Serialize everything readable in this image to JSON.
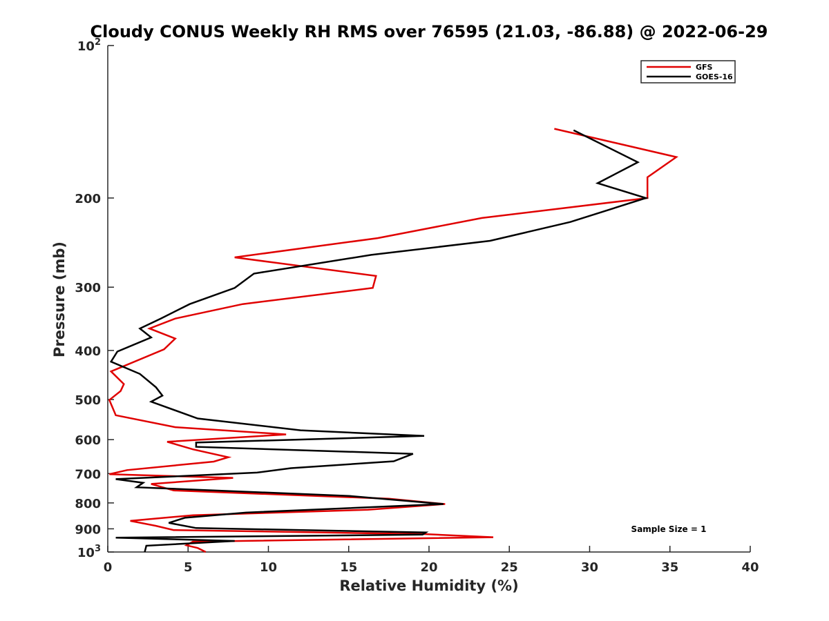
{
  "chart_data": {
    "type": "line",
    "title": "Cloudy CONUS Weekly RH RMS over 76595 (21.03, -86.88) @ 2022-06-29",
    "xlabel": "Relative Humidity (%)",
    "ylabel": "Pressure (mb)",
    "xlim": [
      0,
      40
    ],
    "ylim": [
      100,
      1000
    ],
    "yscale": "log",
    "y_reversed": true,
    "x_ticks": [
      0,
      5,
      10,
      15,
      20,
      25,
      30,
      35,
      40
    ],
    "y_ticks": [
      {
        "value": 100,
        "base": "10",
        "exp": "2"
      },
      {
        "value": 200,
        "label": "200"
      },
      {
        "value": 300,
        "label": "300"
      },
      {
        "value": 400,
        "label": "400"
      },
      {
        "value": 500,
        "label": "500"
      },
      {
        "value": 600,
        "label": "600"
      },
      {
        "value": 700,
        "label": "700"
      },
      {
        "value": 800,
        "label": "800"
      },
      {
        "value": 900,
        "label": "900"
      },
      {
        "value": 1000,
        "base": "10",
        "exp": "3"
      }
    ],
    "legend": {
      "position": "top-right",
      "entries": [
        "GFS",
        "GOES-16"
      ]
    },
    "annotation": "Sample Size = 1",
    "series": [
      {
        "name": "GFS",
        "color": "#e00000",
        "points": [
          [
            27.8,
            146
          ],
          [
            35.4,
            166
          ],
          [
            33.6,
            182
          ],
          [
            33.6,
            200
          ],
          [
            23.3,
            219
          ],
          [
            16.8,
            240
          ],
          [
            7.9,
            262
          ],
          [
            16.7,
            285
          ],
          [
            16.5,
            301
          ],
          [
            8.4,
            324
          ],
          [
            4.2,
            346
          ],
          [
            2.6,
            362
          ],
          [
            4.2,
            379
          ],
          [
            3.5,
            398
          ],
          [
            0.2,
            440
          ],
          [
            1.0,
            466
          ],
          [
            0.8,
            481
          ],
          [
            0.1,
            501
          ],
          [
            0.5,
            537
          ],
          [
            4.2,
            567
          ],
          [
            11.1,
            586
          ],
          [
            3.7,
            606
          ],
          [
            5.3,
            627
          ],
          [
            7.5,
            650
          ],
          [
            6.6,
            663
          ],
          [
            1.2,
            689
          ],
          [
            0.1,
            702
          ],
          [
            7.8,
            714
          ],
          [
            2.7,
            734
          ],
          [
            4.1,
            756
          ],
          [
            17.5,
            785
          ],
          [
            21.0,
            804
          ],
          [
            16.2,
            825
          ],
          [
            5.3,
            846
          ],
          [
            1.4,
            868
          ],
          [
            3.0,
            888
          ],
          [
            4.1,
            905
          ],
          [
            19.8,
            922
          ],
          [
            24.0,
            935
          ],
          [
            5.3,
            954
          ],
          [
            4.9,
            970
          ],
          [
            5.6,
            982
          ],
          [
            6.1,
            1000
          ]
        ]
      },
      {
        "name": "GOES-16",
        "color": "#000000",
        "points": [
          [
            29.0,
            147
          ],
          [
            33.0,
            170
          ],
          [
            30.5,
            187
          ],
          [
            33.5,
            200
          ],
          [
            28.8,
            223
          ],
          [
            23.8,
            243
          ],
          [
            16.4,
            259
          ],
          [
            9.1,
            282
          ],
          [
            7.9,
            301
          ],
          [
            5.1,
            324
          ],
          [
            3.3,
            346
          ],
          [
            2.0,
            362
          ],
          [
            2.7,
            377
          ],
          [
            0.6,
            402
          ],
          [
            0.2,
            421
          ],
          [
            2.0,
            445
          ],
          [
            3.0,
            473
          ],
          [
            3.4,
            491
          ],
          [
            2.7,
            505
          ],
          [
            5.6,
            545
          ],
          [
            12.0,
            575
          ],
          [
            19.7,
            590
          ],
          [
            5.5,
            608
          ],
          [
            5.5,
            620
          ],
          [
            19.0,
            640
          ],
          [
            17.8,
            662
          ],
          [
            11.4,
            683
          ],
          [
            9.3,
            697
          ],
          [
            0.5,
            718
          ],
          [
            2.2,
            730
          ],
          [
            1.8,
            745
          ],
          [
            15.0,
            775
          ],
          [
            20.9,
            804
          ],
          [
            8.6,
            836
          ],
          [
            4.8,
            856
          ],
          [
            3.8,
            876
          ],
          [
            5.5,
            897
          ],
          [
            19.8,
            915
          ],
          [
            19.6,
            924
          ],
          [
            0.5,
            937
          ],
          [
            7.9,
            951
          ],
          [
            2.4,
            972
          ],
          [
            2.3,
            1000
          ]
        ]
      }
    ]
  }
}
